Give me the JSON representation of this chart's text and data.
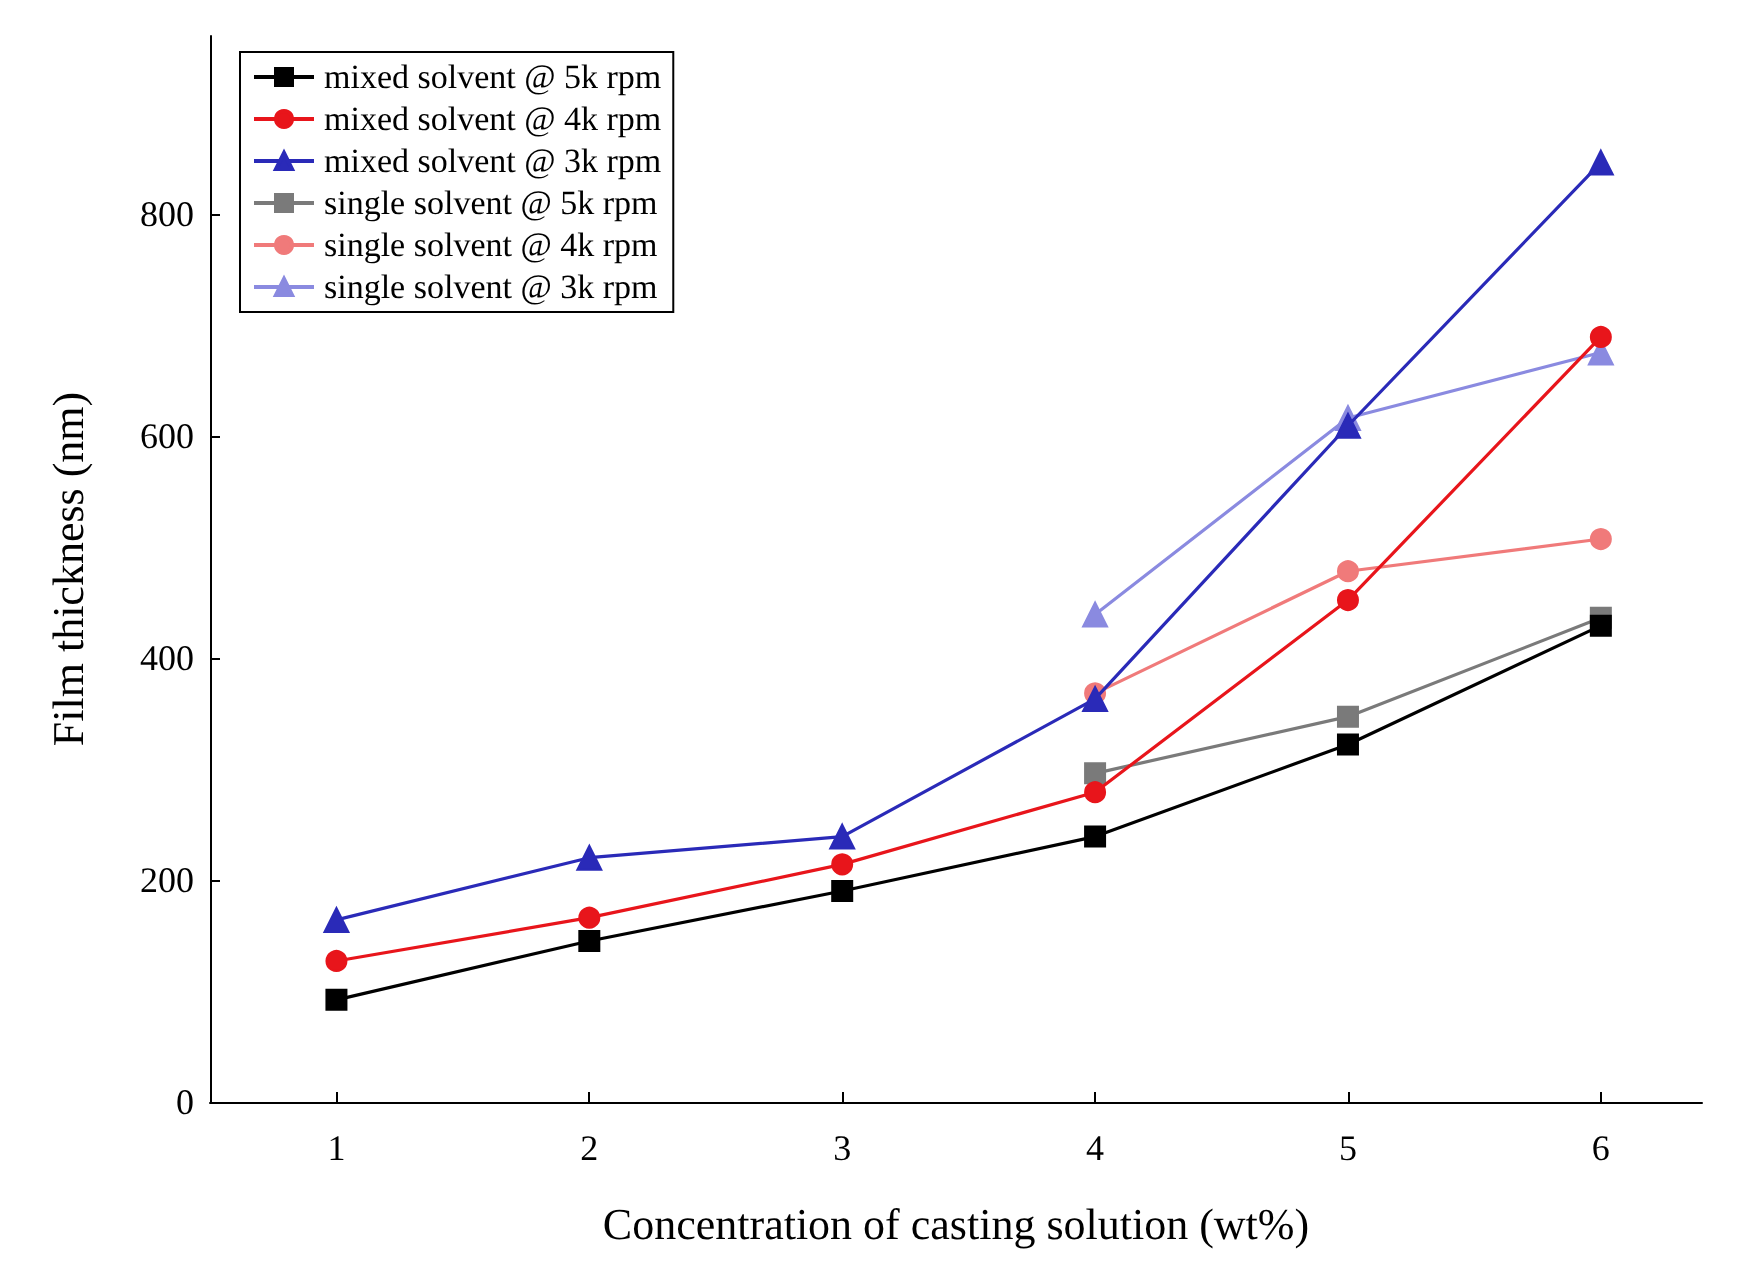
{
  "chart_data": {
    "type": "line",
    "xlabel": "Concentration of casting solution (wt%)",
    "ylabel": "Film thickness (nm)",
    "x": [
      1,
      2,
      3,
      4,
      5,
      6
    ],
    "xlim": [
      0.5,
      6.4
    ],
    "xticks": [
      1,
      2,
      3,
      4,
      5,
      6
    ],
    "ylim": [
      0,
      960
    ],
    "yticks": [
      0,
      200,
      400,
      600,
      800
    ],
    "grid": false,
    "legend": "top left",
    "line_style": "solid",
    "series": [
      {
        "name": "mixed solvent @ 5k rpm",
        "color": "#000000",
        "marker": "square",
        "values": [
          92,
          145,
          190,
          239,
          322,
          429
        ]
      },
      {
        "name": "mixed solvent @ 4k rpm",
        "color": "#e8151b",
        "marker": "circle",
        "values": [
          127,
          166,
          214,
          279,
          452,
          689
        ]
      },
      {
        "name": "mixed solvent @ 3k rpm",
        "color": "#2a2ab8",
        "marker": "triangle",
        "values": [
          164,
          220,
          239,
          363,
          609,
          846
        ]
      },
      {
        "name": "single solvent @ 5k rpm",
        "color": "#7a7a7a",
        "marker": "square",
        "values": [
          null,
          null,
          null,
          296,
          347,
          436
        ]
      },
      {
        "name": "single solvent @ 4k rpm",
        "color": "#f07a7a",
        "marker": "circle",
        "values": [
          null,
          null,
          null,
          368,
          478,
          507
        ]
      },
      {
        "name": "single solvent @ 3k rpm",
        "color": "#8a8ae0",
        "marker": "triangle",
        "values": [
          null,
          null,
          null,
          439,
          616,
          675
        ]
      }
    ]
  }
}
